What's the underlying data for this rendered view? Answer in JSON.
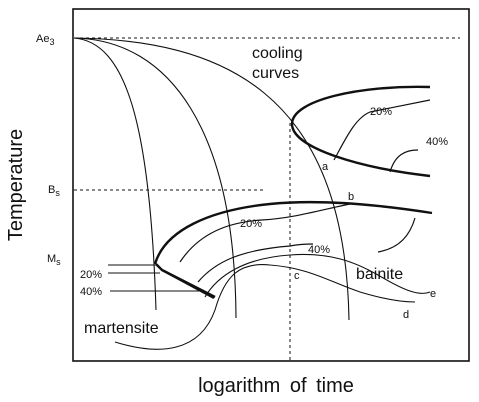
{
  "axes": {
    "x_label": "logarithm of time",
    "y_label": "Temperature"
  },
  "temperature_levels": {
    "ae3": {
      "main": "Ae",
      "sub": "3"
    },
    "bs": {
      "main": "B",
      "sub": "s"
    },
    "ms": {
      "main": "M",
      "sub": "s"
    }
  },
  "labels": {
    "cooling_line1": "cooling",
    "cooling_line2": "curves",
    "bainite": "bainite",
    "martensite": "martensite",
    "upper_20": "20%",
    "upper_40": "40%",
    "lower_20": "20%",
    "lower_40": "40%",
    "mart_20": "20%",
    "mart_40": "40%"
  },
  "points": {
    "a": "a",
    "b": "b",
    "c": "c",
    "d": "d",
    "e": "e"
  }
}
